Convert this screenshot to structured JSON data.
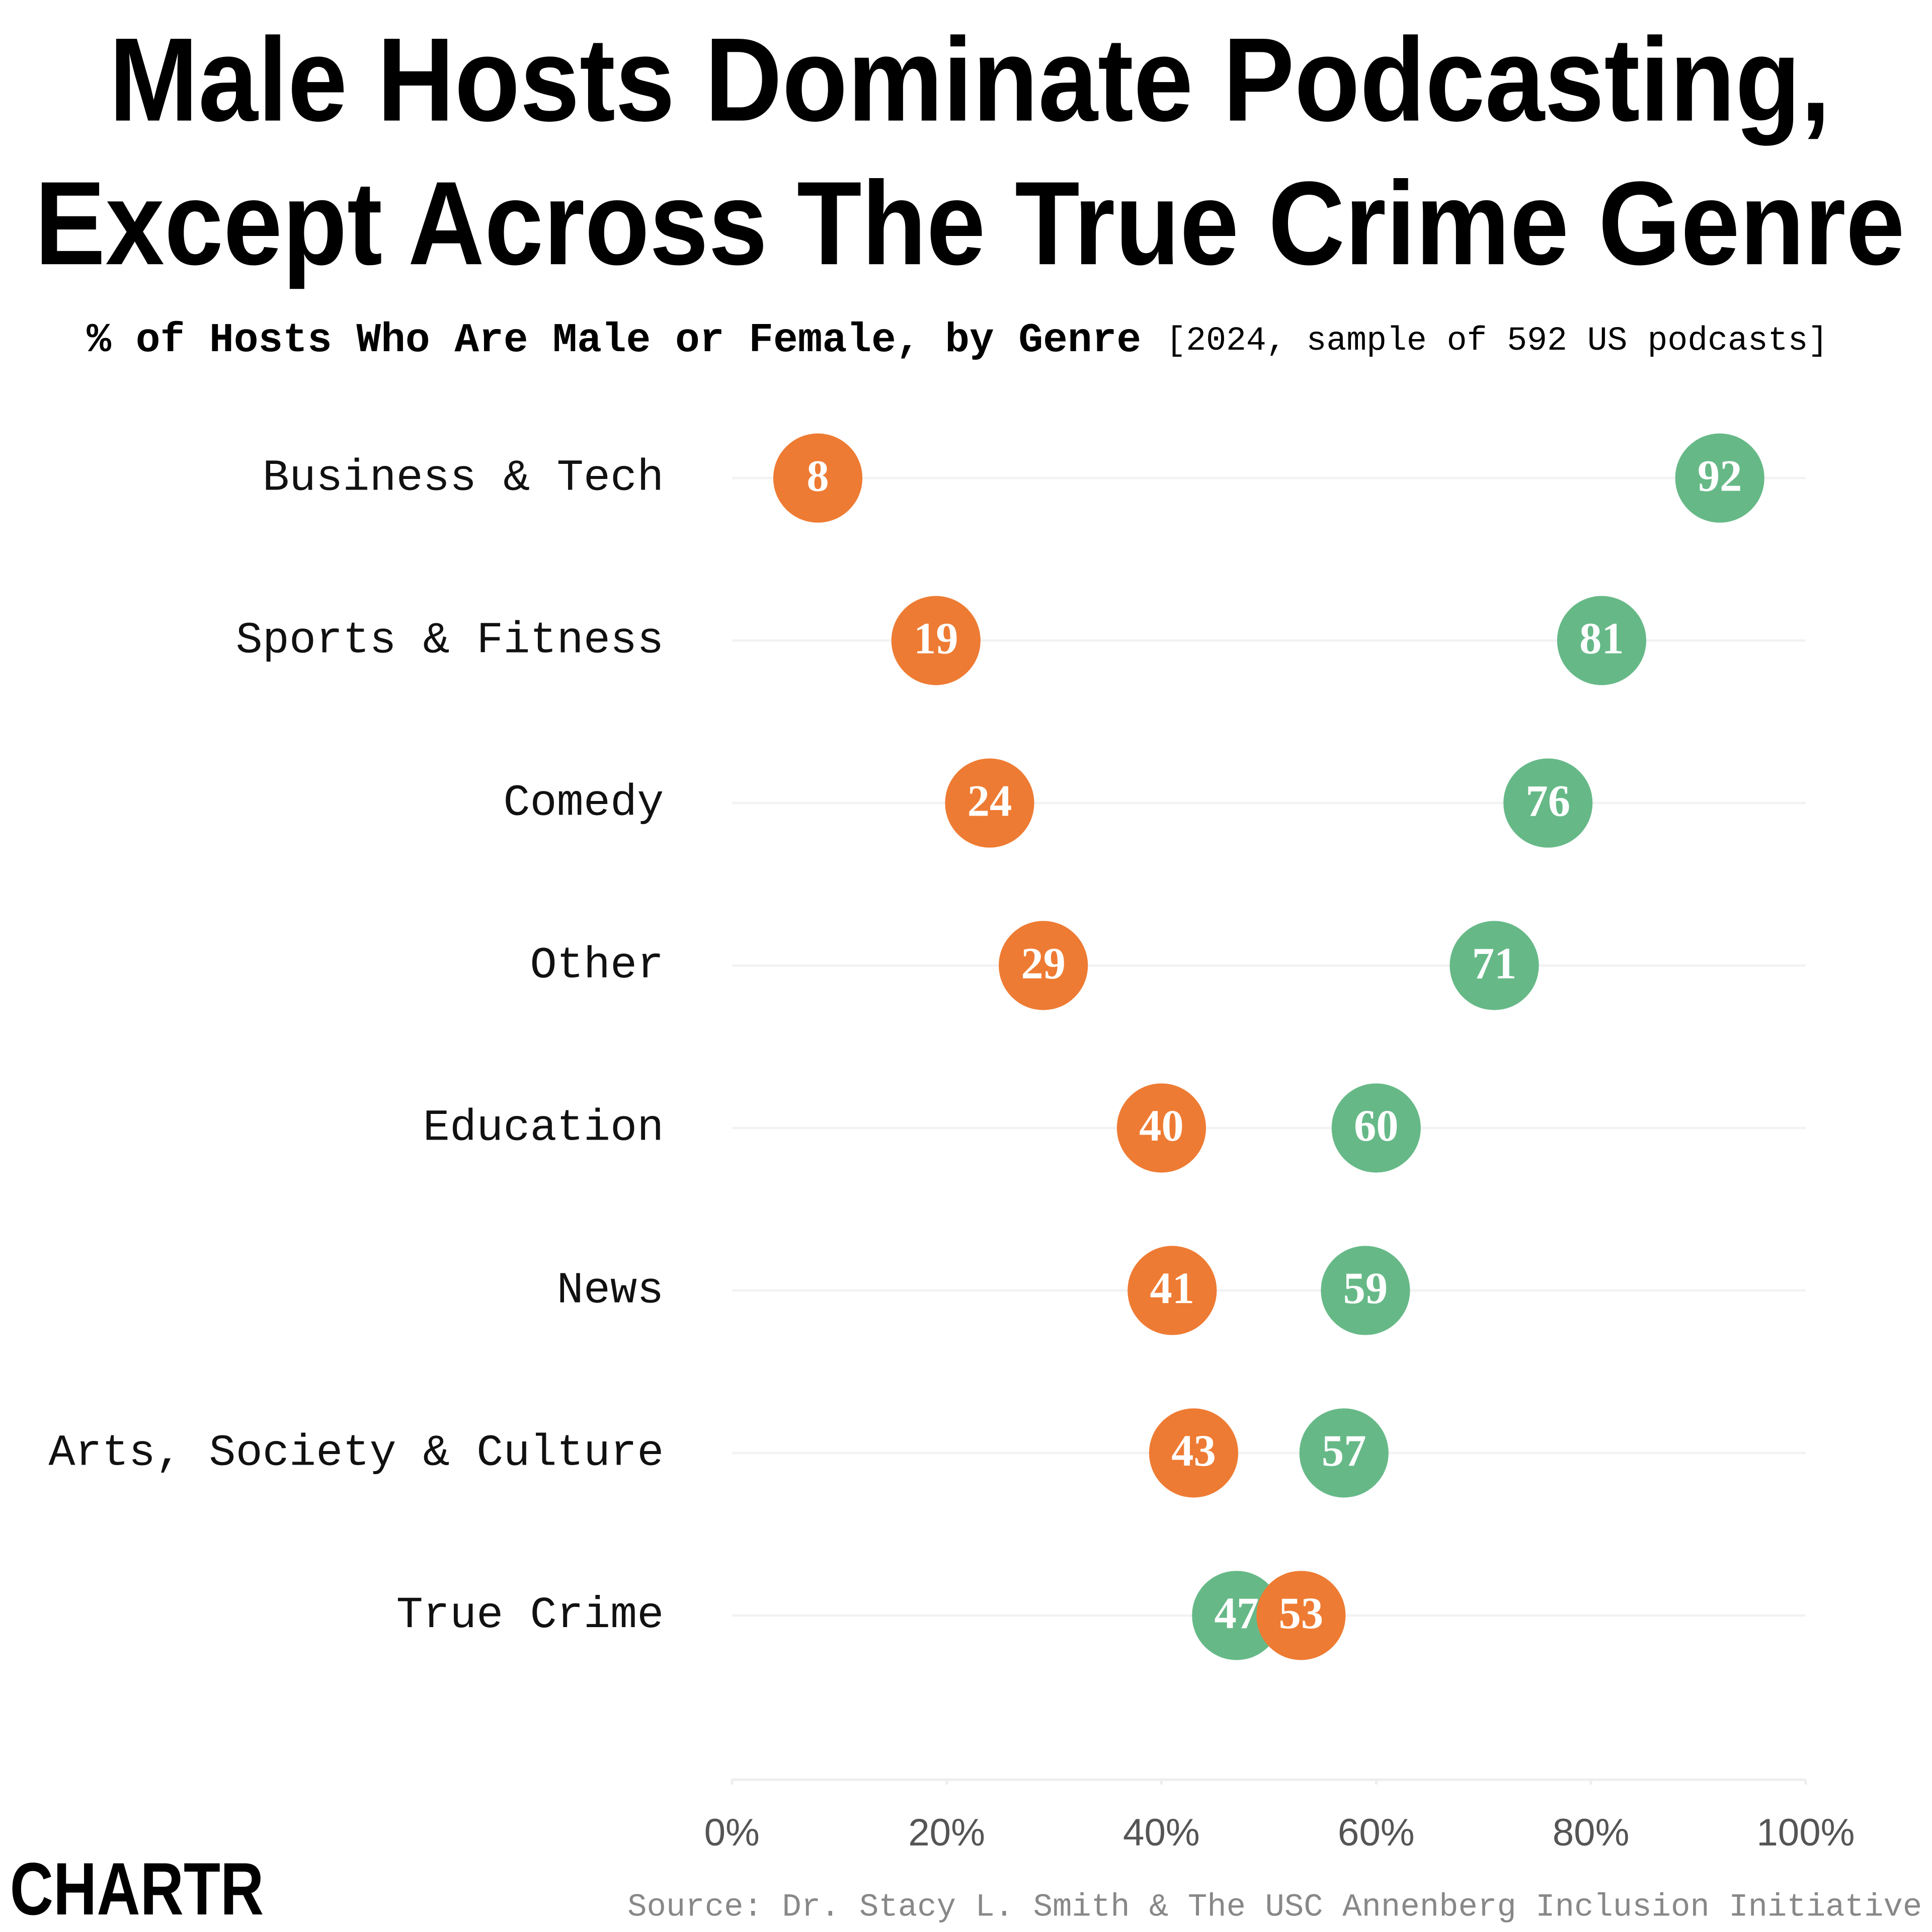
{
  "chart_data": {
    "type": "dumbbell",
    "title_lines": [
      "Male Hosts Dominate Podcasting,",
      "Except Across The True Crime Genre"
    ],
    "subtitle_parts": [
      "% of Hosts Who Are ",
      " or ",
      ", by Genre"
    ],
    "subtitle_note": "[2024, sample of 592 US podcasts]",
    "categories": [
      "Business & Tech",
      "Sports & Fitness",
      "Comedy",
      "Other",
      "Education",
      "News",
      "Arts, Society & Culture",
      "True Crime"
    ],
    "series": [
      {
        "name": "Male",
        "color": "#66b987",
        "values": [
          92,
          81,
          76,
          71,
          60,
          59,
          57,
          47
        ]
      },
      {
        "name": "Female",
        "color": "#ee7b33",
        "values": [
          8,
          19,
          24,
          29,
          40,
          41,
          43,
          53
        ]
      }
    ],
    "xlim": [
      0,
      100
    ],
    "xticks": [
      {
        "value": 0,
        "label": "0%"
      },
      {
        "value": 20,
        "label": "20%"
      },
      {
        "value": 40,
        "label": "40%"
      },
      {
        "value": 60,
        "label": "60%"
      },
      {
        "value": 80,
        "label": "80%"
      },
      {
        "value": 100,
        "label": "100%"
      }
    ],
    "source": "Source: Dr. Stacy L. Smith & The USC Annenberg Inclusion Initiative",
    "logo": "CHARTR"
  }
}
